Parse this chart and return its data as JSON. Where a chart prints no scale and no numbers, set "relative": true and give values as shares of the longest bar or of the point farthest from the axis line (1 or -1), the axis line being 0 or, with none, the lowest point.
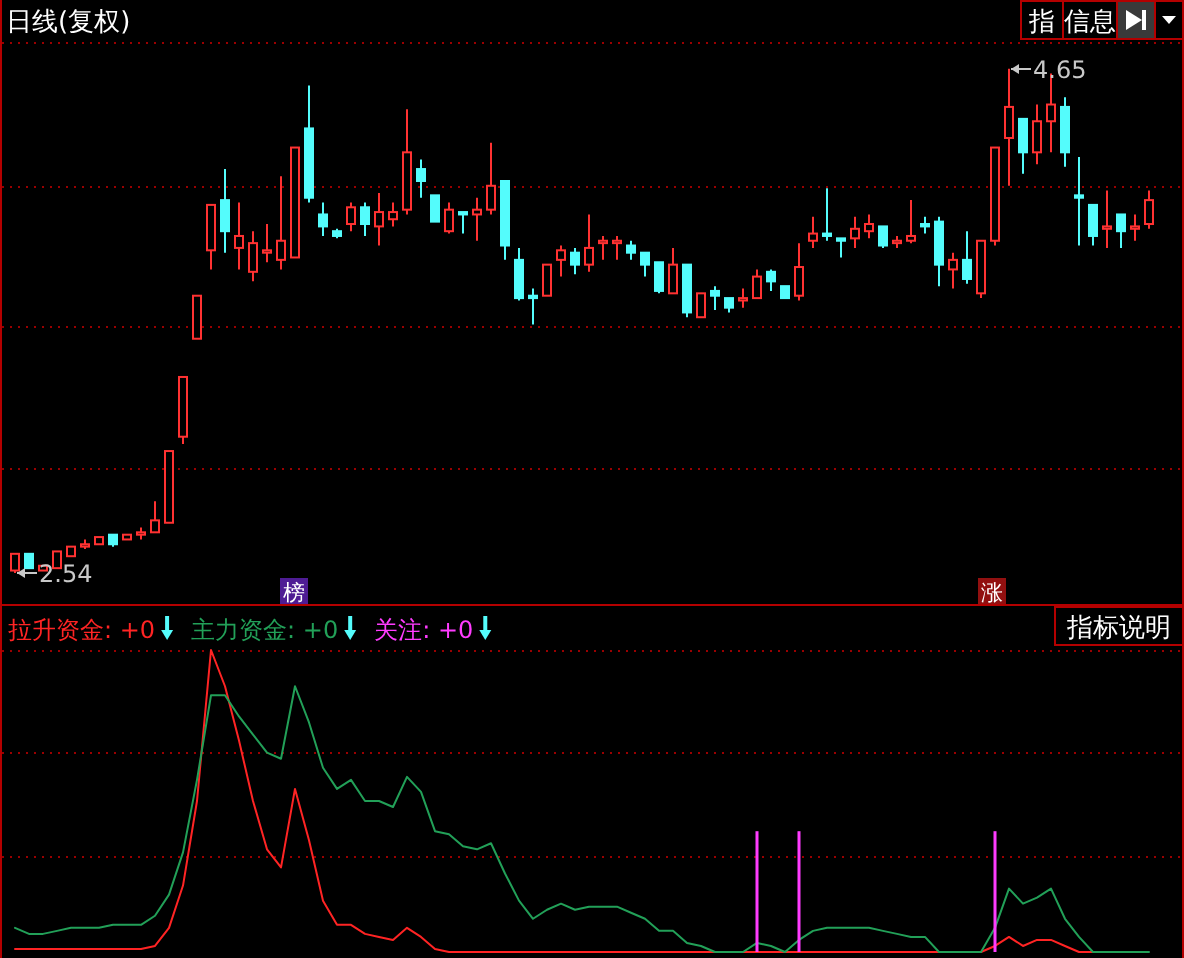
{
  "chart_data": [
    {
      "type": "candlestick",
      "title": "日线(复权)",
      "categories": [
        null,
        null,
        null,
        null,
        null,
        null,
        null,
        null,
        null,
        null,
        null,
        null,
        null,
        null,
        null,
        null,
        null,
        null,
        null,
        null,
        null,
        null,
        null,
        null,
        null,
        null,
        null,
        null,
        null,
        null,
        null,
        null,
        null,
        null,
        null,
        null,
        null,
        null,
        null,
        null,
        null,
        null,
        null,
        null,
        null,
        null,
        null,
        null,
        null,
        null,
        null,
        null,
        null,
        null,
        null,
        null,
        null,
        null,
        null,
        null,
        null,
        null,
        null,
        null,
        null,
        null,
        null,
        null,
        null,
        null,
        null,
        null,
        null,
        null,
        null,
        null,
        null,
        null,
        null,
        null,
        null,
        null
      ],
      "ohlc": [
        [
          2.55,
          2.62,
          2.54,
          2.62
        ],
        [
          2.62,
          2.62,
          2.56,
          2.56
        ],
        [
          2.55,
          2.57,
          2.55,
          2.57
        ],
        [
          2.56,
          2.63,
          2.56,
          2.63
        ],
        [
          2.61,
          2.65,
          2.61,
          2.65
        ],
        [
          2.65,
          2.68,
          2.64,
          2.66
        ],
        [
          2.66,
          2.69,
          2.66,
          2.69
        ],
        [
          2.7,
          2.7,
          2.65,
          2.66
        ],
        [
          2.68,
          2.7,
          2.68,
          2.7
        ],
        [
          2.7,
          2.73,
          2.68,
          2.71
        ],
        [
          2.71,
          2.84,
          2.71,
          2.76
        ],
        [
          2.75,
          3.05,
          2.75,
          3.05
        ],
        [
          3.11,
          3.36,
          3.08,
          3.36
        ],
        [
          3.52,
          3.7,
          3.52,
          3.7
        ],
        [
          3.89,
          4.08,
          3.81,
          4.08
        ],
        [
          4.1,
          4.23,
          3.88,
          3.97
        ],
        [
          3.9,
          4.09,
          3.81,
          3.95
        ],
        [
          3.8,
          3.97,
          3.76,
          3.92
        ],
        [
          3.88,
          4.0,
          3.84,
          3.89
        ],
        [
          3.85,
          4.2,
          3.81,
          3.93
        ],
        [
          3.86,
          4.32,
          3.86,
          4.32
        ],
        [
          4.4,
          4.58,
          4.09,
          4.11
        ],
        [
          4.04,
          4.09,
          3.95,
          3.99
        ],
        [
          3.97,
          3.98,
          3.94,
          3.95
        ],
        [
          4.0,
          4.09,
          3.97,
          4.07
        ],
        [
          4.07,
          4.09,
          3.95,
          4.0
        ],
        [
          3.99,
          4.13,
          3.91,
          4.05
        ],
        [
          4.02,
          4.09,
          3.99,
          4.05
        ],
        [
          4.06,
          4.48,
          4.04,
          4.3
        ],
        [
          4.23,
          4.27,
          4.11,
          4.18
        ],
        [
          4.12,
          4.12,
          4.01,
          4.01
        ],
        [
          3.97,
          4.09,
          3.96,
          4.06
        ],
        [
          4.05,
          4.05,
          3.96,
          4.04
        ],
        [
          4.04,
          4.11,
          3.93,
          4.06
        ],
        [
          4.06,
          4.34,
          4.04,
          4.16
        ],
        [
          4.18,
          4.18,
          3.85,
          3.91
        ],
        [
          3.85,
          3.9,
          3.68,
          3.69
        ],
        [
          3.7,
          3.73,
          3.58,
          3.69
        ],
        [
          3.7,
          3.83,
          3.7,
          3.83
        ],
        [
          3.85,
          3.91,
          3.78,
          3.89
        ],
        [
          3.88,
          3.9,
          3.79,
          3.83
        ],
        [
          3.83,
          4.04,
          3.8,
          3.9
        ],
        [
          3.92,
          3.95,
          3.85,
          3.93
        ],
        [
          3.92,
          3.95,
          3.85,
          3.93
        ],
        [
          3.91,
          3.93,
          3.85,
          3.88
        ],
        [
          3.88,
          3.88,
          3.78,
          3.83
        ],
        [
          3.84,
          3.84,
          3.71,
          3.72
        ],
        [
          3.71,
          3.9,
          3.71,
          3.83
        ],
        [
          3.83,
          3.83,
          3.61,
          3.63
        ],
        [
          3.61,
          3.71,
          3.61,
          3.71
        ],
        [
          3.72,
          3.74,
          3.64,
          3.7
        ],
        [
          3.69,
          3.69,
          3.63,
          3.65
        ],
        [
          3.68,
          3.73,
          3.65,
          3.69
        ],
        [
          3.69,
          3.81,
          3.69,
          3.78
        ],
        [
          3.8,
          3.81,
          3.72,
          3.76
        ],
        [
          3.74,
          3.74,
          3.69,
          3.69
        ],
        [
          3.7,
          3.92,
          3.68,
          3.82
        ],
        [
          3.93,
          4.03,
          3.9,
          3.96
        ],
        [
          3.96,
          4.15,
          3.93,
          3.95
        ],
        [
          3.94,
          3.94,
          3.86,
          3.93
        ],
        [
          3.94,
          4.03,
          3.9,
          3.98
        ],
        [
          3.97,
          4.04,
          3.94,
          4.0
        ],
        [
          3.99,
          3.99,
          3.9,
          3.91
        ],
        [
          3.92,
          3.95,
          3.9,
          3.93
        ],
        [
          3.93,
          4.1,
          3.92,
          3.95
        ],
        [
          4.0,
          4.03,
          3.96,
          3.99
        ],
        [
          4.01,
          4.03,
          3.74,
          3.83
        ],
        [
          3.81,
          3.88,
          3.73,
          3.85
        ],
        [
          3.85,
          3.97,
          3.75,
          3.77
        ],
        [
          3.71,
          3.93,
          3.69,
          3.93
        ],
        [
          3.93,
          4.32,
          3.91,
          4.32
        ],
        [
          4.36,
          4.65,
          4.16,
          4.49
        ],
        [
          4.44,
          4.44,
          4.21,
          4.3
        ],
        [
          4.3,
          4.5,
          4.25,
          4.43
        ],
        [
          4.43,
          4.63,
          4.3,
          4.5
        ],
        [
          4.49,
          4.53,
          4.24,
          4.3
        ],
        [
          4.12,
          4.28,
          3.91,
          4.11
        ],
        [
          4.08,
          4.08,
          3.91,
          3.95
        ],
        [
          3.98,
          4.14,
          3.9,
          3.99
        ],
        [
          4.04,
          4.04,
          3.9,
          3.97
        ],
        [
          3.98,
          4.04,
          3.93,
          3.99
        ],
        [
          4.0,
          4.14,
          3.98,
          4.1
        ]
      ],
      "colors": [
        "#ff3232",
        "#54fcfc",
        "#ff3232",
        "#ff3232",
        "#ff3232",
        "#ff3232",
        "#ff3232",
        "#54fcfc",
        "#ff3232",
        "#ff3232",
        "#ff3232",
        "#ff3232",
        "#ff3232",
        "#ff3232",
        "#ff3232",
        "#54fcfc",
        "#ff3232",
        "#ff3232",
        "#ff3232",
        "#ff3232",
        "#ff3232",
        "#54fcfc",
        "#54fcfc",
        "#54fcfc",
        "#ff3232",
        "#54fcfc",
        "#ff3232",
        "#ff3232",
        "#ff3232",
        "#54fcfc",
        "#54fcfc",
        "#ff3232",
        "#54fcfc",
        "#ff3232",
        "#ff3232",
        "#54fcfc",
        "#54fcfc",
        "#54fcfc",
        "#ff3232",
        "#ff3232",
        "#54fcfc",
        "#ff3232",
        "#ff3232",
        "#ff3232",
        "#54fcfc",
        "#54fcfc",
        "#54fcfc",
        "#ff3232",
        "#54fcfc",
        "#ff3232",
        "#54fcfc",
        "#54fcfc",
        "#ff3232",
        "#ff3232",
        "#54fcfc",
        "#54fcfc",
        "#ff3232",
        "#ff3232",
        "#54fcfc",
        "#54fcfc",
        "#ff3232",
        "#ff3232",
        "#54fcfc",
        "#ff3232",
        "#ff3232",
        "#54fcfc",
        "#54fcfc",
        "#ff3232",
        "#54fcfc",
        "#ff3232",
        "#ff3232",
        "#ff3232",
        "#54fcfc",
        "#ff3232",
        "#ff3232",
        "#54fcfc",
        "#54fcfc",
        "#54fcfc",
        "#ff3232",
        "#54fcfc",
        "#ff3232",
        "#ff3232"
      ],
      "ylim": [
        2.41,
        4.77
      ],
      "ref_lines": [
        {
          "axis": "y",
          "value": 4.76,
          "color": "#9a0000",
          "line_style": "dotted"
        },
        {
          "axis": "y",
          "value": 4.16,
          "color": "#9a0000",
          "line_style": "dotted"
        },
        {
          "axis": "y",
          "value": 3.57,
          "color": "#9a0000",
          "line_style": "dotted"
        },
        {
          "axis": "y",
          "value": 2.98,
          "color": "#9a0000",
          "line_style": "dotted"
        }
      ],
      "annotations": [
        "4.65",
        "2.54",
        "榜",
        "涨",
        "指",
        "信息"
      ]
    },
    {
      "type": "line",
      "relative": true,
      "categories": [
        null,
        null,
        null,
        null,
        null,
        null,
        null,
        null,
        null,
        null,
        null,
        null,
        null,
        null,
        null,
        null,
        null,
        null,
        null,
        null,
        null,
        null,
        null,
        null,
        null,
        null,
        null,
        null,
        null,
        null,
        null,
        null,
        null,
        null,
        null,
        null,
        null,
        null,
        null,
        null,
        null,
        null,
        null,
        null,
        null,
        null,
        null,
        null,
        null,
        null,
        null,
        null,
        null,
        null,
        null,
        null,
        null,
        null,
        null,
        null,
        null,
        null,
        null,
        null,
        null,
        null,
        null,
        null,
        null,
        null,
        null,
        null,
        null,
        null,
        null,
        null,
        null,
        null,
        null,
        null,
        null,
        null
      ],
      "series": [
        {
          "name": "拉升资金: +0",
          "color": "#ff2424",
          "values": [
            0.01,
            0.01,
            0.01,
            0.01,
            0.01,
            0.01,
            0.01,
            0.01,
            0.01,
            0.01,
            0.02,
            0.08,
            0.22,
            0.5,
            1,
            0.88,
            0.7,
            0.5,
            0.34,
            0.28,
            0.54,
            0.37,
            0.17,
            0.09,
            0.09,
            0.06,
            0.05,
            0.04,
            0.08,
            0.05,
            0.01,
            0,
            0,
            0,
            0,
            0,
            0,
            0,
            0,
            0,
            0,
            0,
            0,
            0,
            0,
            0,
            0,
            0,
            0,
            0,
            0,
            0,
            0,
            0,
            0,
            0,
            0,
            0,
            0,
            0,
            0,
            0,
            0,
            0,
            0,
            0,
            0,
            0,
            0,
            0,
            0.02,
            0.05,
            0.02,
            0.04,
            0.04,
            0.02,
            0,
            0,
            0,
            null,
            null,
            null
          ]
        },
        {
          "name": "主力资金: +0",
          "color": "#22a058",
          "values": [
            0.08,
            0.06,
            0.06,
            0.07,
            0.08,
            0.08,
            0.08,
            0.09,
            0.09,
            0.09,
            0.12,
            0.19,
            0.33,
            0.57,
            0.85,
            0.85,
            0.78,
            0.72,
            0.66,
            0.64,
            0.88,
            0.76,
            0.61,
            0.54,
            0.57,
            0.5,
            0.5,
            0.48,
            0.58,
            0.53,
            0.4,
            0.39,
            0.35,
            0.34,
            0.36,
            0.26,
            0.17,
            0.11,
            0.14,
            0.16,
            0.14,
            0.15,
            0.15,
            0.15,
            0.13,
            0.11,
            0.07,
            0.07,
            0.03,
            0.02,
            0,
            0,
            0,
            0.03,
            0.02,
            0,
            0.04,
            0.07,
            0.08,
            0.08,
            0.08,
            0.08,
            0.07,
            0.06,
            0.05,
            0.05,
            0,
            0,
            0,
            0,
            0.08,
            0.21,
            0.16,
            0.18,
            0.21,
            0.11,
            0.05,
            0,
            0,
            0,
            0,
            0
          ]
        },
        {
          "name": "关注: +0",
          "type": "bar",
          "color": "#ff3cff",
          "values": [
            null,
            null,
            null,
            null,
            null,
            null,
            null,
            null,
            null,
            null,
            null,
            null,
            null,
            null,
            null,
            null,
            null,
            null,
            null,
            null,
            null,
            null,
            null,
            null,
            null,
            null,
            null,
            null,
            null,
            null,
            null,
            null,
            null,
            null,
            null,
            null,
            null,
            null,
            null,
            null,
            null,
            null,
            null,
            null,
            null,
            null,
            null,
            null,
            null,
            null,
            null,
            null,
            null,
            0.4,
            null,
            null,
            0.4,
            null,
            null,
            null,
            null,
            null,
            null,
            null,
            null,
            null,
            null,
            null,
            null,
            null,
            0.4,
            null,
            null,
            null,
            null,
            null,
            null,
            null,
            null,
            null,
            null,
            null
          ]
        }
      ],
      "ref_lines": [
        {
          "axis": "y",
          "value": 1,
          "color": "#9a0000",
          "line_style": "dotted"
        },
        {
          "axis": "y",
          "value": 0.66,
          "color": "#9a0000",
          "line_style": "dotted"
        },
        {
          "axis": "y",
          "value": 0.32,
          "color": "#9a0000",
          "line_style": "dotted"
        }
      ],
      "legend": "top left",
      "annotations": [
        "指标说明"
      ]
    }
  ]
}
